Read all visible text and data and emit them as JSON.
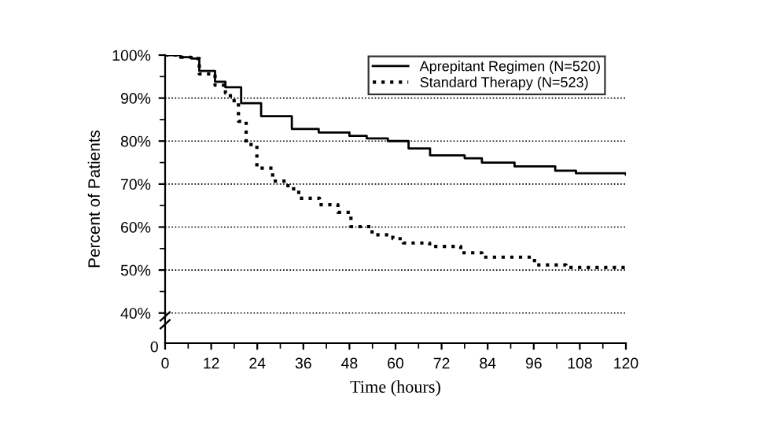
{
  "chart_data": {
    "type": "step",
    "xlabel": "Time (hours)",
    "ylabel": "Percent of Patients",
    "series": [
      {
        "name": "Aprepitant Regimen (N=520)",
        "color": "#000000",
        "line_style": "solid",
        "x": [
          0,
          4,
          6.8,
          8.9,
          13,
          15.7,
          19.8,
          25,
          33,
          40,
          48,
          52.5,
          58,
          63.4,
          69,
          78,
          82.5,
          91,
          101.6,
          107,
          120
        ],
        "values": [
          100,
          99.5,
          99.2,
          96.3,
          93.8,
          92.5,
          88.8,
          85.8,
          82.8,
          82,
          81.2,
          80.6,
          80,
          78.3,
          76.7,
          76,
          75,
          74.1,
          73.1,
          72.5,
          72.2
        ]
      },
      {
        "name": "Standard Therapy (N=523)",
        "color": "#000000",
        "line_style": "dotted",
        "x": [
          0,
          4,
          6.8,
          8.9,
          13,
          15.7,
          17,
          19.1,
          21.1,
          23.9,
          28,
          32,
          34.8,
          40.2,
          45,
          48.4,
          53.9,
          59.3,
          62,
          68.9,
          77,
          82.5,
          89.4,
          96.2,
          104.4,
          120
        ],
        "values": [
          100,
          99.5,
          99.2,
          95.6,
          93,
          91.2,
          89.4,
          84.6,
          79.2,
          73.7,
          70.7,
          68.9,
          66.7,
          65.2,
          63.4,
          60.1,
          58.2,
          57.3,
          56.3,
          55.5,
          54,
          53,
          53,
          51.2,
          50.6,
          49.7
        ]
      }
    ],
    "xlim": [
      0,
      120
    ],
    "xticks": [
      0,
      {
        "value": 6,
        "label": null
      },
      12,
      {
        "value": 18,
        "label": null
      },
      24,
      {
        "value": 30,
        "label": null
      },
      36,
      {
        "value": 42,
        "label": null
      },
      48,
      {
        "value": 54,
        "label": null
      },
      60,
      {
        "value": 66,
        "label": null
      },
      72,
      {
        "value": 78,
        "label": null
      },
      84,
      {
        "value": 90,
        "label": null
      },
      96,
      {
        "value": 102,
        "label": null
      },
      108,
      {
        "value": 114,
        "label": null
      },
      120
    ],
    "ylim": [
      33,
      100
    ],
    "yticks": [
      {
        "value": 40,
        "label": "40%"
      },
      {
        "value": 45,
        "label": null
      },
      {
        "value": 50,
        "label": "50%"
      },
      {
        "value": 55,
        "label": null
      },
      {
        "value": 60,
        "label": "60%"
      },
      {
        "value": 65,
        "label": null
      },
      {
        "value": 70,
        "label": "70%"
      },
      {
        "value": 75,
        "label": null
      },
      {
        "value": 80,
        "label": "80%"
      },
      {
        "value": 85,
        "label": null
      },
      {
        "value": 90,
        "label": "90%"
      },
      {
        "value": 95,
        "label": null
      },
      {
        "value": 100,
        "label": "100%"
      }
    ],
    "annotations": [
      "0"
    ],
    "grid": "y",
    "legend": "top right",
    "marker": "none"
  }
}
